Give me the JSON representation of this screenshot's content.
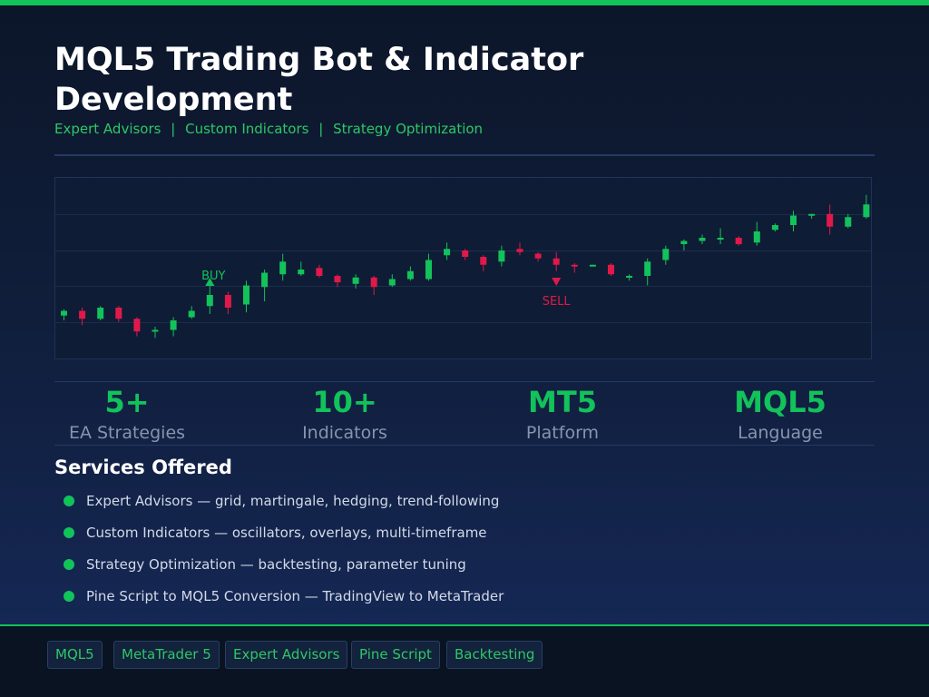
{
  "header": {
    "title": "MQL5 Trading Bot & Indicator Development",
    "subtitle": [
      "Expert Advisors",
      "Custom Indicators",
      "Strategy Optimization"
    ],
    "subtitle_separator": "|"
  },
  "chart_data": {
    "type": "candlestick",
    "grid": true,
    "y_min": 0,
    "y_max": 100,
    "colors": {
      "up": "#12c25a",
      "down": "#e0194a"
    },
    "candles": [
      {
        "o": 19,
        "c": 22,
        "h": 23,
        "l": 16
      },
      {
        "o": 22,
        "c": 17,
        "h": 24,
        "l": 13
      },
      {
        "o": 17,
        "c": 24,
        "h": 25,
        "l": 16
      },
      {
        "o": 24,
        "c": 17,
        "h": 25,
        "l": 15
      },
      {
        "o": 17,
        "c": 9,
        "h": 18,
        "l": 6
      },
      {
        "o": 9,
        "c": 10,
        "h": 12,
        "l": 5
      },
      {
        "o": 10,
        "c": 16,
        "h": 18,
        "l": 6
      },
      {
        "o": 18,
        "c": 22,
        "h": 25,
        "l": 17
      },
      {
        "o": 25,
        "c": 32,
        "h": 38,
        "l": 20
      },
      {
        "o": 32,
        "c": 24,
        "h": 34,
        "l": 20
      },
      {
        "o": 26,
        "c": 38,
        "h": 41,
        "l": 21
      },
      {
        "o": 37,
        "c": 46,
        "h": 48,
        "l": 28
      },
      {
        "o": 45,
        "c": 53,
        "h": 58,
        "l": 41
      },
      {
        "o": 45,
        "c": 48,
        "h": 53,
        "l": 44
      },
      {
        "o": 49,
        "c": 44,
        "h": 51,
        "l": 43
      },
      {
        "o": 44,
        "c": 40,
        "h": 45,
        "l": 37
      },
      {
        "o": 39,
        "c": 43,
        "h": 45,
        "l": 36
      },
      {
        "o": 43,
        "c": 37,
        "h": 44,
        "l": 32
      },
      {
        "o": 38,
        "c": 42,
        "h": 45,
        "l": 37
      },
      {
        "o": 42,
        "c": 47,
        "h": 50,
        "l": 41
      },
      {
        "o": 42,
        "c": 54,
        "h": 58,
        "l": 41
      },
      {
        "o": 57,
        "c": 61,
        "h": 65,
        "l": 54
      },
      {
        "o": 60,
        "c": 56,
        "h": 61,
        "l": 54
      },
      {
        "o": 56,
        "c": 51,
        "h": 57,
        "l": 47
      },
      {
        "o": 53,
        "c": 60,
        "h": 63,
        "l": 50
      },
      {
        "o": 61,
        "c": 59,
        "h": 65,
        "l": 57
      },
      {
        "o": 58,
        "c": 55,
        "h": 59,
        "l": 53
      },
      {
        "o": 55,
        "c": 51,
        "h": 59,
        "l": 47
      },
      {
        "o": 51,
        "c": 50,
        "h": 52,
        "l": 46
      },
      {
        "o": 50,
        "c": 51,
        "h": 51,
        "l": 50
      },
      {
        "o": 51,
        "c": 45,
        "h": 52,
        "l": 44
      },
      {
        "o": 44,
        "c": 44,
        "h": 45,
        "l": 41
      },
      {
        "o": 44,
        "c": 53,
        "h": 55,
        "l": 38
      },
      {
        "o": 54,
        "c": 61,
        "h": 63,
        "l": 51
      },
      {
        "o": 64,
        "c": 66,
        "h": 67,
        "l": 60
      },
      {
        "o": 66,
        "c": 68,
        "h": 70,
        "l": 64
      },
      {
        "o": 68,
        "c": 68,
        "h": 74,
        "l": 64
      },
      {
        "o": 68,
        "c": 64,
        "h": 69,
        "l": 63
      },
      {
        "o": 65,
        "c": 72,
        "h": 78,
        "l": 63
      },
      {
        "o": 73,
        "c": 76,
        "h": 77,
        "l": 72
      },
      {
        "o": 76,
        "c": 82,
        "h": 85,
        "l": 72
      },
      {
        "o": 82,
        "c": 83,
        "h": 83,
        "l": 80
      },
      {
        "o": 83,
        "c": 75,
        "h": 89,
        "l": 70
      },
      {
        "o": 75,
        "c": 81,
        "h": 83,
        "l": 74
      },
      {
        "o": 81,
        "c": 89,
        "h": 95,
        "l": 80
      }
    ],
    "signals": [
      {
        "label": "BUY",
        "type": "buy",
        "index": 8,
        "y": 40
      },
      {
        "label": "SELL",
        "type": "sell",
        "index": 27,
        "y": 40
      }
    ]
  },
  "stats": [
    {
      "value": "5+",
      "label": "EA Strategies"
    },
    {
      "value": "10+",
      "label": "Indicators"
    },
    {
      "value": "MT5",
      "label": "Platform"
    },
    {
      "value": "MQL5",
      "label": "Language"
    }
  ],
  "services": {
    "heading": "Services Offered",
    "items": [
      "Expert Advisors — grid, martingale, hedging, trend-following",
      "Custom Indicators — oscillators, overlays, multi-timeframe",
      "Strategy Optimization — backtesting, parameter tuning",
      "Pine Script to MQL5 Conversion — TradingView to MetaTrader"
    ]
  },
  "tags": [
    "MQL5",
    "MetaTrader 5",
    "Expert Advisors",
    "Pine Script",
    "Backtesting"
  ]
}
